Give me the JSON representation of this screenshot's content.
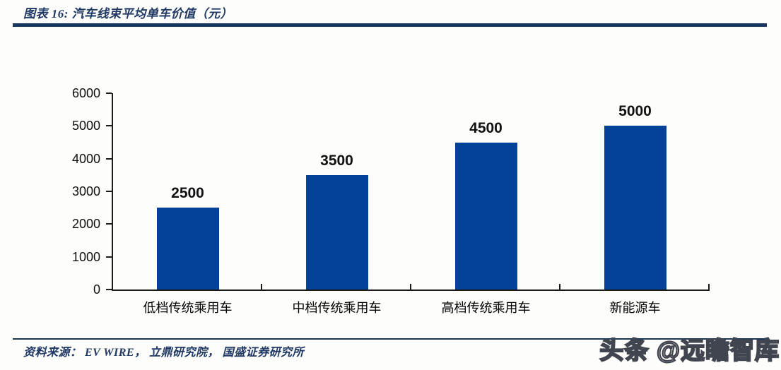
{
  "figure": {
    "title": "图表 16:  汽车线束平均单车价值（元）",
    "source": "资料来源： EV WIRE， 立鼎研究院， 国盛证券研究所",
    "watermark": "头条 @远瞻智库"
  },
  "colors": {
    "accent_rule": "#17375e",
    "bar": "#04429a",
    "title_text": "#1f3864",
    "axis": "#1a1a1a",
    "label_text": "#111111"
  },
  "chart_data": {
    "type": "bar",
    "title": "汽车线束平均单车价值（元）",
    "categories": [
      "低档传统乘用车",
      "中档传统乘用车",
      "高档传统乘用车",
      "新能源车"
    ],
    "values": [
      2500,
      3500,
      4500,
      5000
    ],
    "data_labels": [
      "2500",
      "3500",
      "4500",
      "5000"
    ],
    "xlabel": "",
    "ylabel": "",
    "ylim": [
      0,
      6000
    ],
    "yticks": [
      0,
      1000,
      2000,
      3000,
      4000,
      5000,
      6000
    ],
    "grid": false,
    "legend": "none",
    "bar_color": "#04429a"
  }
}
